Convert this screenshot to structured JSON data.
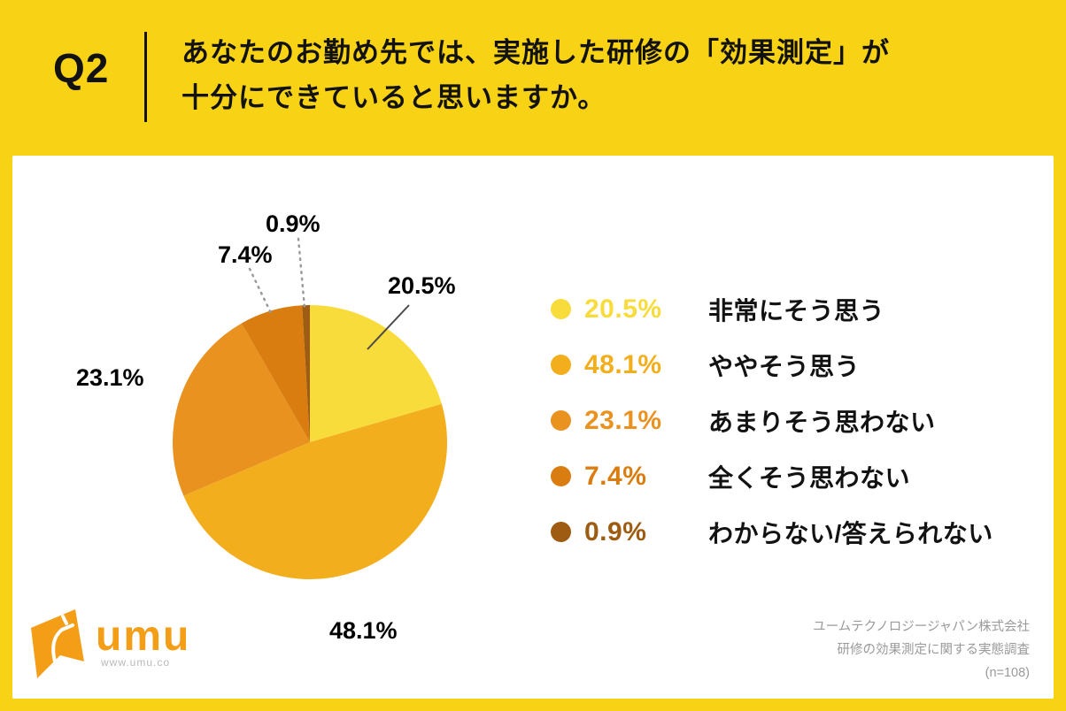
{
  "header": {
    "q_label": "Q2",
    "question_line1": "あなたのお勤め先では、実施した研修の「効果測定」が",
    "question_line2": "十分にできていると思いますか。"
  },
  "chart_data": {
    "type": "pie",
    "title": "実施した研修の「効果測定」が十分にできていると思うか",
    "start_angle_deg": 0,
    "direction": "clockwise",
    "legend_position": "right",
    "slices": [
      {
        "label": "非常にそう思う",
        "value": 20.5,
        "display": "20.5%",
        "color": "#F8DC3C"
      },
      {
        "label": "ややそう思う",
        "value": 48.1,
        "display": "48.1%",
        "color": "#F2AE1C"
      },
      {
        "label": "あまりそう思わない",
        "value": 23.1,
        "display": "23.1%",
        "color": "#E9921F"
      },
      {
        "label": "全くそう思わない",
        "value": 7.4,
        "display": "7.4%",
        "color": "#DA7D10"
      },
      {
        "label": "わからない/答えられない",
        "value": 0.9,
        "display": "0.9%",
        "color": "#9E5C12"
      }
    ]
  },
  "footer": {
    "logo_text": "umu",
    "logo_url_text": "www.umu.co",
    "source_line1": "ユームテクノロジージャパン株式会社",
    "source_line2": "研修の効果測定に関する実態調査",
    "source_line3": "(n=108)"
  },
  "colors": {
    "page_background": "#F7D215",
    "card_background": "#ffffff",
    "text_primary": "#121212",
    "logo_orange": "#F49E17",
    "source_gray": "#9A9A9A"
  }
}
